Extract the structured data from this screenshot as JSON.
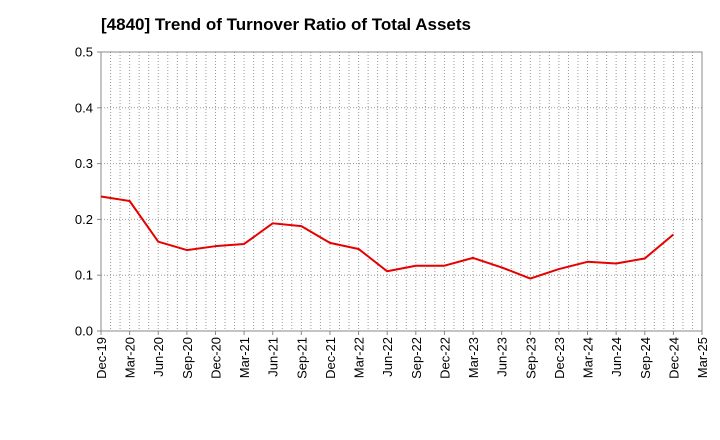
{
  "chart_data": {
    "type": "line",
    "title": "[4840]  Trend of Turnover Ratio of Total Assets",
    "xlabel": "",
    "ylabel": "",
    "ylim": [
      0.0,
      0.5
    ],
    "yticks": [
      "0.0",
      "0.1",
      "0.2",
      "0.3",
      "0.4",
      "0.5"
    ],
    "x_tick_labels": [
      "Dec-19",
      "Mar-20",
      "Jun-20",
      "Sep-20",
      "Dec-20",
      "Mar-21",
      "Jun-21",
      "Sep-21",
      "Dec-21",
      "Mar-22",
      "Jun-22",
      "Sep-22",
      "Dec-22",
      "Mar-23",
      "Jun-23",
      "Sep-23",
      "Dec-23",
      "Mar-24",
      "Jun-24",
      "Sep-24",
      "Dec-24",
      "Mar-25"
    ],
    "grid": true,
    "series": [
      {
        "color": "#e60000",
        "x": [
          "Dec-19",
          "Mar-20",
          "Jun-20",
          "Sep-20",
          "Dec-20",
          "Mar-21",
          "Jun-21",
          "Sep-21",
          "Dec-21",
          "Mar-22",
          "Jun-22",
          "Sep-22",
          "Dec-22",
          "Mar-23",
          "Jun-23",
          "Sep-23",
          "Dec-23",
          "Mar-24",
          "Jun-24",
          "Sep-24",
          "Dec-24"
        ],
        "values": [
          0.241,
          0.233,
          0.16,
          0.145,
          0.152,
          0.156,
          0.193,
          0.188,
          0.158,
          0.147,
          0.107,
          0.117,
          0.117,
          0.131,
          0.114,
          0.094,
          0.111,
          0.124,
          0.121,
          0.13,
          0.173
        ]
      }
    ]
  }
}
